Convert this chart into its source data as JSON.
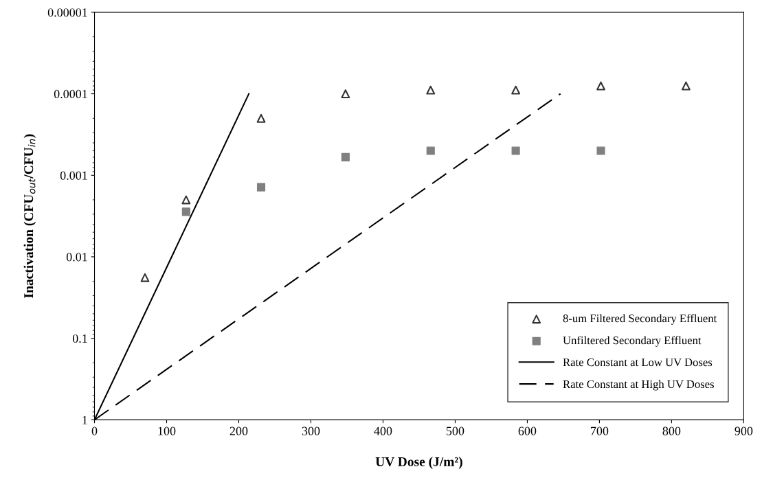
{
  "chart_data": {
    "type": "scatter",
    "xlabel": "UV Dose (J/m²)",
    "ylabel": "Inactivation (CFU$_{out}$/CFU$_{in}$)",
    "log": "y",
    "xlim": [
      0,
      900
    ],
    "xticks": [
      0,
      100,
      200,
      300,
      400,
      500,
      600,
      700,
      800,
      900
    ],
    "ylim": [
      1,
      1e-05
    ],
    "yticks": [
      {
        "value": 1,
        "label": "1"
      },
      {
        "value": 0.1,
        "label": "0.1"
      },
      {
        "value": 0.01,
        "label": "0.01"
      },
      {
        "value": 0.001,
        "label": "0.001"
      },
      {
        "value": 0.0001,
        "label": "0.0001"
      },
      {
        "value": 1e-05,
        "label": "0.00001"
      }
    ],
    "grid": false,
    "legend": "bottom right",
    "series": [
      {
        "name": "8-um Filtered Secondary Effluent",
        "marker": "triangle",
        "color": "#333333",
        "x": [
          70,
          127,
          231,
          348,
          466,
          584,
          702,
          820
        ],
        "values": [
          0.018,
          0.002,
          0.0002,
          0.0001,
          9e-05,
          9e-05,
          8e-05,
          8e-05
        ]
      },
      {
        "name": "Unfiltered Secondary Effluent",
        "marker": "square",
        "color": "#808080",
        "x": [
          127,
          231,
          348,
          466,
          584,
          702
        ],
        "values": [
          0.0028,
          0.0014,
          0.0006,
          0.0005,
          0.0005,
          0.0005
        ]
      },
      {
        "name": "Rate Constant at Low UV Doses",
        "type": "line",
        "line_style": "solid",
        "color": "#000000",
        "x": [
          0,
          214
        ],
        "values": [
          1,
          0.0001
        ]
      },
      {
        "name": "Rate Constant at High UV Doses",
        "type": "line",
        "line_style": "dashed",
        "color": "#000000",
        "x": [
          0,
          646
        ],
        "values": [
          1,
          0.0001
        ]
      }
    ]
  }
}
